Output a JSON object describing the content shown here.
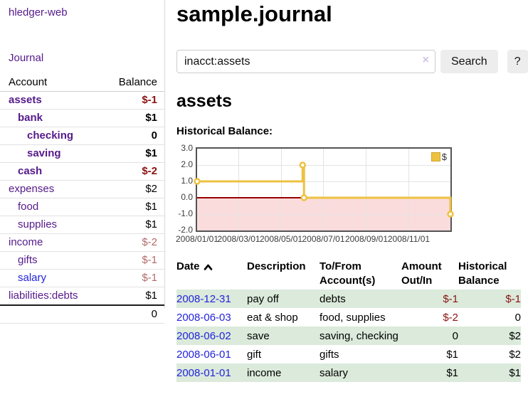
{
  "sidebar": {
    "brand": "hledger-web",
    "nav_journal": "Journal",
    "accounts_header": {
      "account": "Account",
      "balance": "Balance"
    },
    "accounts": [
      {
        "name": "assets",
        "indent": 1,
        "bold": true,
        "balance": "$-1",
        "neg": "strong"
      },
      {
        "name": "bank",
        "indent": 2,
        "bold": true,
        "balance": "$1",
        "neg": "none"
      },
      {
        "name": "checking",
        "indent": 3,
        "bold": true,
        "balance": "0",
        "neg": "none"
      },
      {
        "name": "saving",
        "indent": 3,
        "bold": true,
        "balance": "$1",
        "neg": "none"
      },
      {
        "name": "cash",
        "indent": 2,
        "bold": true,
        "balance": "$-2",
        "neg": "strong"
      },
      {
        "name": "expenses",
        "indent": 1,
        "bold": false,
        "balance": "$2",
        "neg": "none"
      },
      {
        "name": "food",
        "indent": 2,
        "bold": false,
        "balance": "$1",
        "neg": "none"
      },
      {
        "name": "supplies",
        "indent": 2,
        "bold": false,
        "balance": "$1",
        "neg": "none"
      },
      {
        "name": "income",
        "indent": 1,
        "bold": false,
        "balance": "$-2",
        "neg": "muted"
      },
      {
        "name": "gifts",
        "indent": 2,
        "bold": false,
        "balance": "$-1",
        "neg": "muted"
      },
      {
        "name": "salary",
        "indent": 2,
        "bold": false,
        "balance": "$-1",
        "neg": "muted",
        "blue": true
      },
      {
        "name": "liabilities:debts",
        "indent": 1,
        "bold": false,
        "balance": "$1",
        "neg": "none"
      }
    ],
    "total": "0"
  },
  "main": {
    "title": "sample.journal",
    "search": {
      "value": "inacct:assets",
      "clear": "×",
      "button": "Search",
      "help": "?"
    },
    "account_heading": "assets",
    "chart_label": "Historical Balance:"
  },
  "chart_data": {
    "type": "line",
    "step": true,
    "title": "Historical Balance",
    "series": [
      {
        "name": "$",
        "points": [
          [
            "2008-01-01",
            1.0
          ],
          [
            "2008-06-01",
            2.0
          ],
          [
            "2008-06-03",
            0.0
          ],
          [
            "2008-12-31",
            -1.0
          ]
        ]
      }
    ],
    "x_ticks": [
      "2008/01/01",
      "2008/03/01",
      "2008/05/01",
      "2008/07/01",
      "2008/09/01",
      "2008/11/01"
    ],
    "y_ticks": [
      3.0,
      2.0,
      1.0,
      0.0,
      -1.0,
      -2.0
    ],
    "xlim": [
      "2008/01/01",
      "2008/12/31"
    ],
    "ylim": [
      -2.0,
      3.0
    ],
    "grid": true,
    "legend_position": "top-right",
    "legend": [
      {
        "label": "$",
        "color": "#edc240"
      }
    ],
    "colors": {
      "line": "#edc240",
      "marker_fill": "#ffffff",
      "negative_fill": "#fbdcdc",
      "zero_line": "#990000",
      "gridline": "#e3e3e3",
      "border": "#545454"
    }
  },
  "register": {
    "columns": {
      "date": "Date",
      "description": "Description",
      "accounts_l1": "To/From",
      "accounts_l2": "Account(s)",
      "amount_l1": "Amount",
      "amount_l2": "Out/In",
      "balance_l1": "Historical",
      "balance_l2": "Balance"
    },
    "rows": [
      {
        "date": "2008-12-31",
        "description": "pay off",
        "accounts": "debts",
        "amount": "$-1",
        "amount_neg": true,
        "balance": "$-1",
        "balance_neg": true,
        "shaded": true
      },
      {
        "date": "2008-06-03",
        "description": "eat & shop",
        "accounts": "food, supplies",
        "amount": "$-2",
        "amount_neg": true,
        "balance": "0",
        "balance_neg": false,
        "shaded": false
      },
      {
        "date": "2008-06-02",
        "description": "save",
        "accounts": "saving, checking",
        "amount": "0",
        "amount_neg": false,
        "balance": "$2",
        "balance_neg": false,
        "shaded": true
      },
      {
        "date": "2008-06-01",
        "description": "gift",
        "accounts": "gifts",
        "amount": "$1",
        "amount_neg": false,
        "balance": "$2",
        "balance_neg": false,
        "shaded": false
      },
      {
        "date": "2008-01-01",
        "description": "income",
        "accounts": "salary",
        "amount": "$1",
        "amount_neg": false,
        "balance": "$1",
        "balance_neg": false,
        "shaded": true
      }
    ]
  }
}
